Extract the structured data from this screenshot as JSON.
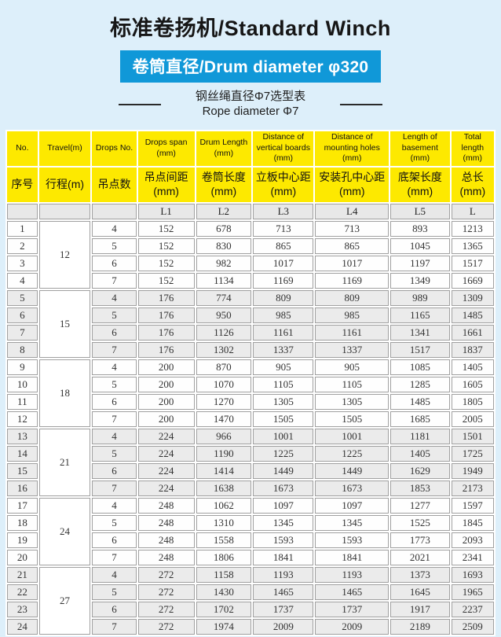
{
  "header": {
    "title": "标准卷扬机/Standard Winch",
    "banner": "卷筒直径/Drum diameter φ320",
    "subtitle_zh": "钢丝绳直径Φ7选型表",
    "subtitle_en": "Rope diameter Φ7"
  },
  "colors": {
    "page_bg": "#ddeffa",
    "banner_bg": "#1098d8",
    "banner_text": "#ffffff",
    "header_yellow": "#fde900",
    "row_alt_grey": "#ebebeb",
    "cell_border": "#a0a0a0"
  },
  "table": {
    "header_en": [
      "No.",
      "Travel(m)",
      "Drops No.",
      "Drops span\n(mm)",
      "Drum Length\n(mm)",
      "Distance of\nvertical boards\n(mm)",
      "Distance of\nmounting holes\n(mm)",
      "Length of\nbasement\n(mm)",
      "Total\nlength\n(mm)"
    ],
    "header_zh": [
      "序号",
      "行程(m)",
      "吊点数",
      "吊点间距\n(mm)",
      "卷筒长度\n(mm)",
      "立板中心距\n(mm)",
      "安装孔中心距\n(mm)",
      "底架长度\n(mm)",
      "总长\n(mm)"
    ],
    "header_sym": [
      "",
      "",
      "",
      "L1",
      "L2",
      "L3",
      "L4",
      "L5",
      "L"
    ],
    "groups": [
      {
        "travel": "12",
        "rows": [
          [
            "1",
            "4",
            "152",
            "678",
            "713",
            "713",
            "893",
            "1213"
          ],
          [
            "2",
            "5",
            "152",
            "830",
            "865",
            "865",
            "1045",
            "1365"
          ],
          [
            "3",
            "6",
            "152",
            "982",
            "1017",
            "1017",
            "1197",
            "1517"
          ],
          [
            "4",
            "7",
            "152",
            "1134",
            "1169",
            "1169",
            "1349",
            "1669"
          ]
        ]
      },
      {
        "travel": "15",
        "rows": [
          [
            "5",
            "4",
            "176",
            "774",
            "809",
            "809",
            "989",
            "1309"
          ],
          [
            "6",
            "5",
            "176",
            "950",
            "985",
            "985",
            "1165",
            "1485"
          ],
          [
            "7",
            "6",
            "176",
            "1126",
            "1161",
            "1161",
            "1341",
            "1661"
          ],
          [
            "8",
            "7",
            "176",
            "1302",
            "1337",
            "1337",
            "1517",
            "1837"
          ]
        ]
      },
      {
        "travel": "18",
        "rows": [
          [
            "9",
            "4",
            "200",
            "870",
            "905",
            "905",
            "1085",
            "1405"
          ],
          [
            "10",
            "5",
            "200",
            "1070",
            "1105",
            "1105",
            "1285",
            "1605"
          ],
          [
            "11",
            "6",
            "200",
            "1270",
            "1305",
            "1305",
            "1485",
            "1805"
          ],
          [
            "12",
            "7",
            "200",
            "1470",
            "1505",
            "1505",
            "1685",
            "2005"
          ]
        ]
      },
      {
        "travel": "21",
        "rows": [
          [
            "13",
            "4",
            "224",
            "966",
            "1001",
            "1001",
            "1181",
            "1501"
          ],
          [
            "14",
            "5",
            "224",
            "1190",
            "1225",
            "1225",
            "1405",
            "1725"
          ],
          [
            "15",
            "6",
            "224",
            "1414",
            "1449",
            "1449",
            "1629",
            "1949"
          ],
          [
            "16",
            "7",
            "224",
            "1638",
            "1673",
            "1673",
            "1853",
            "2173"
          ]
        ]
      },
      {
        "travel": "24",
        "rows": [
          [
            "17",
            "4",
            "248",
            "1062",
            "1097",
            "1097",
            "1277",
            "1597"
          ],
          [
            "18",
            "5",
            "248",
            "1310",
            "1345",
            "1345",
            "1525",
            "1845"
          ],
          [
            "19",
            "6",
            "248",
            "1558",
            "1593",
            "1593",
            "1773",
            "2093"
          ],
          [
            "20",
            "7",
            "248",
            "1806",
            "1841",
            "1841",
            "2021",
            "2341"
          ]
        ]
      },
      {
        "travel": "27",
        "rows": [
          [
            "21",
            "4",
            "272",
            "1158",
            "1193",
            "1193",
            "1373",
            "1693"
          ],
          [
            "22",
            "5",
            "272",
            "1430",
            "1465",
            "1465",
            "1645",
            "1965"
          ],
          [
            "23",
            "6",
            "272",
            "1702",
            "1737",
            "1737",
            "1917",
            "2237"
          ],
          [
            "24",
            "7",
            "272",
            "1974",
            "2009",
            "2009",
            "2189",
            "2509"
          ]
        ]
      }
    ]
  }
}
